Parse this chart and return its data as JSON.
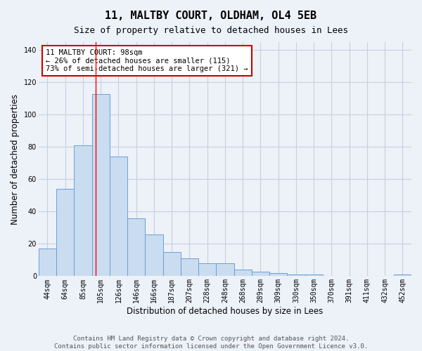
{
  "title": "11, MALTBY COURT, OLDHAM, OL4 5EB",
  "subtitle": "Size of property relative to detached houses in Lees",
  "xlabel": "Distribution of detached houses by size in Lees",
  "ylabel": "Number of detached properties",
  "footnote1": "Contains HM Land Registry data © Crown copyright and database right 2024.",
  "footnote2": "Contains public sector information licensed under the Open Government Licence v3.0.",
  "categories": [
    "44sqm",
    "64sqm",
    "85sqm",
    "105sqm",
    "126sqm",
    "146sqm",
    "166sqm",
    "187sqm",
    "207sqm",
    "228sqm",
    "248sqm",
    "268sqm",
    "289sqm",
    "309sqm",
    "330sqm",
    "350sqm",
    "370sqm",
    "391sqm",
    "411sqm",
    "432sqm",
    "452sqm"
  ],
  "values": [
    17,
    54,
    81,
    113,
    74,
    36,
    26,
    15,
    11,
    8,
    8,
    4,
    3,
    2,
    1,
    1,
    0,
    0,
    0,
    0,
    1
  ],
  "bar_color": "#c9dcf0",
  "bar_edge_color": "#6b9fd4",
  "grid_color": "#c8d0e0",
  "bg_color": "#edf1f8",
  "annotation_text": "11 MALTBY COURT: 98sqm\n← 26% of detached houses are smaller (115)\n73% of semi-detached houses are larger (321) →",
  "annotation_box_color": "#ffffff",
  "annotation_box_edge": "#cc0000",
  "red_line_x": 2.7,
  "ylim": [
    0,
    145
  ],
  "yticks": [
    0,
    20,
    40,
    60,
    80,
    100,
    120,
    140
  ],
  "title_fontsize": 11,
  "subtitle_fontsize": 9,
  "ylabel_fontsize": 8.5,
  "xlabel_fontsize": 8.5,
  "tick_fontsize": 7,
  "annot_fontsize": 7.5,
  "footnote_fontsize": 6.5
}
